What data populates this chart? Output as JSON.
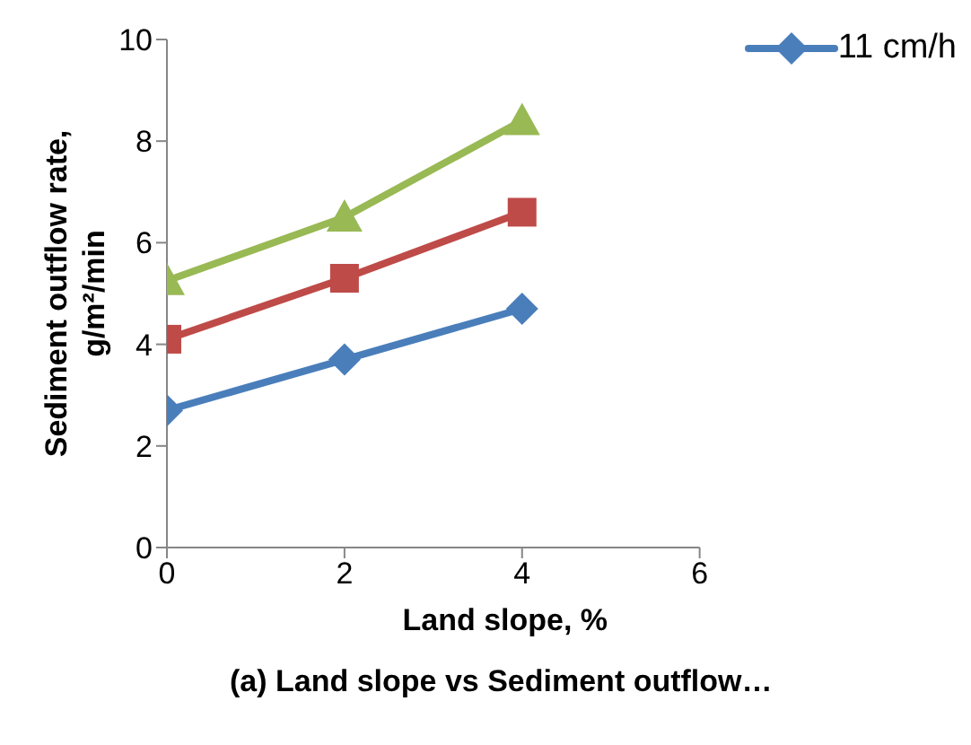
{
  "chart_data": {
    "type": "line",
    "xlabel": "Land slope, %",
    "ylabel": "Sediment outflow rate, g/m²/min",
    "annotations": [
      "(a) Land slope vs Sediment outflow…"
    ],
    "x": [
      0,
      2,
      4
    ],
    "series": [
      {
        "name": "11 cm/h",
        "color": "#4a7ebb",
        "marker": "diamond",
        "values": [
          2.7,
          3.7,
          4.7
        ]
      },
      {
        "color": "#be4b48",
        "marker": "square",
        "values": [
          4.1,
          5.3,
          6.6
        ]
      },
      {
        "color": "#98b954",
        "marker": "triangle",
        "values": [
          5.25,
          6.5,
          8.4
        ]
      }
    ],
    "xlim": [
      0,
      6
    ],
    "xticks": [
      0,
      2,
      4,
      6
    ],
    "ylim": [
      0,
      10
    ],
    "yticks": [
      0,
      2,
      4,
      6,
      8,
      10
    ],
    "grid": false,
    "legend": "top right"
  }
}
